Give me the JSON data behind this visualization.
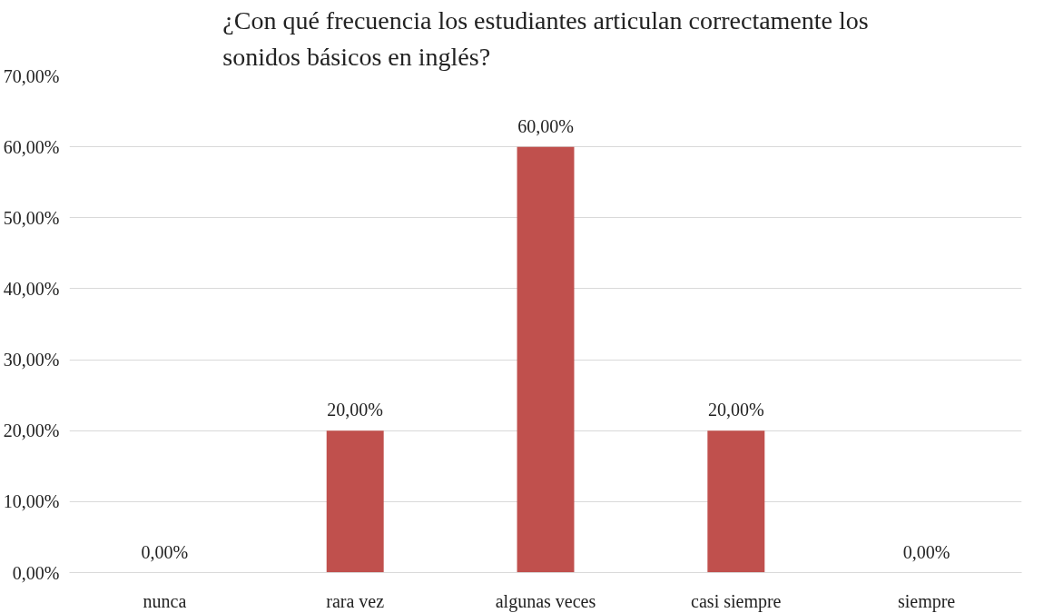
{
  "chart_data": {
    "type": "bar",
    "title": "¿Con qué frecuencia los estudiantes articulan correctamente los sonidos básicos en inglés?",
    "categories": [
      "nunca",
      "rara vez",
      "algunas veces",
      "casi siempre",
      "siempre"
    ],
    "values": [
      0,
      20,
      60,
      20,
      0
    ],
    "value_labels": [
      "0,00%",
      "20,00%",
      "60,00%",
      "20,00%",
      "0,00%"
    ],
    "color": "#c0504d",
    "ylim": [
      0,
      70
    ],
    "yticks": [
      {
        "value": 0,
        "label": "0,00%"
      },
      {
        "value": 10,
        "label": "10,00%"
      },
      {
        "value": 20,
        "label": "20,00%"
      },
      {
        "value": 30,
        "label": "30,00%"
      },
      {
        "value": 40,
        "label": "40,00%"
      },
      {
        "value": 50,
        "label": "50,00%"
      },
      {
        "value": 60,
        "label": "60,00%"
      },
      {
        "value": 70,
        "label": "70,00%"
      }
    ],
    "grid": "y"
  }
}
